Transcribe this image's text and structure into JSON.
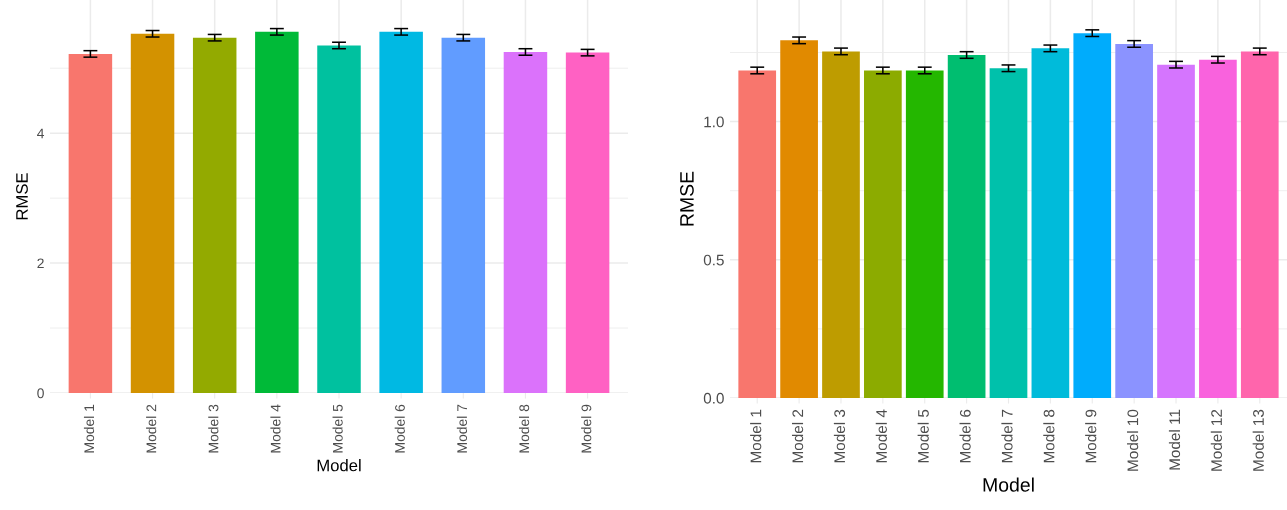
{
  "chart_data": [
    {
      "type": "bar",
      "xlabel": "Model",
      "ylabel": "RMSE",
      "categories": [
        "Model 1",
        "Model 2",
        "Model 3",
        "Model 4",
        "Model 5",
        "Model 6",
        "Model 7",
        "Model 8",
        "Model 9"
      ],
      "values": [
        5.22,
        5.53,
        5.47,
        5.56,
        5.35,
        5.56,
        5.47,
        5.25,
        5.24
      ],
      "errors": [
        0.05,
        0.05,
        0.05,
        0.05,
        0.05,
        0.05,
        0.05,
        0.05,
        0.05
      ],
      "colors": [
        "#f8766d",
        "#d39200",
        "#93aa00",
        "#00ba38",
        "#00c19f",
        "#00b9e3",
        "#619cff",
        "#db72fb",
        "#ff61c3"
      ],
      "ylim": [
        0,
        6.05
      ],
      "yticks": [
        0,
        2,
        4
      ],
      "grid": true
    },
    {
      "type": "bar",
      "xlabel": "Model",
      "ylabel": "RMSE",
      "categories": [
        "Model 1",
        "Model 2",
        "Model 3",
        "Model 4",
        "Model 5",
        "Model 6",
        "Model 7",
        "Model 8",
        "Model 9",
        "Model 10",
        "Model 11",
        "Model 12",
        "Model 13"
      ],
      "values": [
        1.185,
        1.294,
        1.254,
        1.185,
        1.185,
        1.241,
        1.193,
        1.265,
        1.32,
        1.281,
        1.206,
        1.224,
        1.254
      ],
      "errors": [
        0.012,
        0.012,
        0.012,
        0.012,
        0.012,
        0.012,
        0.012,
        0.012,
        0.012,
        0.012,
        0.012,
        0.012,
        0.012
      ],
      "colors": [
        "#f8766d",
        "#e18a00",
        "#be9c00",
        "#8cab00",
        "#24b700",
        "#00be70",
        "#00c1ab",
        "#00bbda",
        "#00acfc",
        "#8b93ff",
        "#d575fe",
        "#f962dd",
        "#ff65ac"
      ],
      "ylim": [
        0,
        1.44
      ],
      "yticks": [
        {
          "value": 0,
          "label": "0.0"
        },
        {
          "value": 0.5,
          "label": "0.5"
        },
        {
          "value": 1.0,
          "label": "1.0"
        }
      ],
      "grid": true
    }
  ]
}
